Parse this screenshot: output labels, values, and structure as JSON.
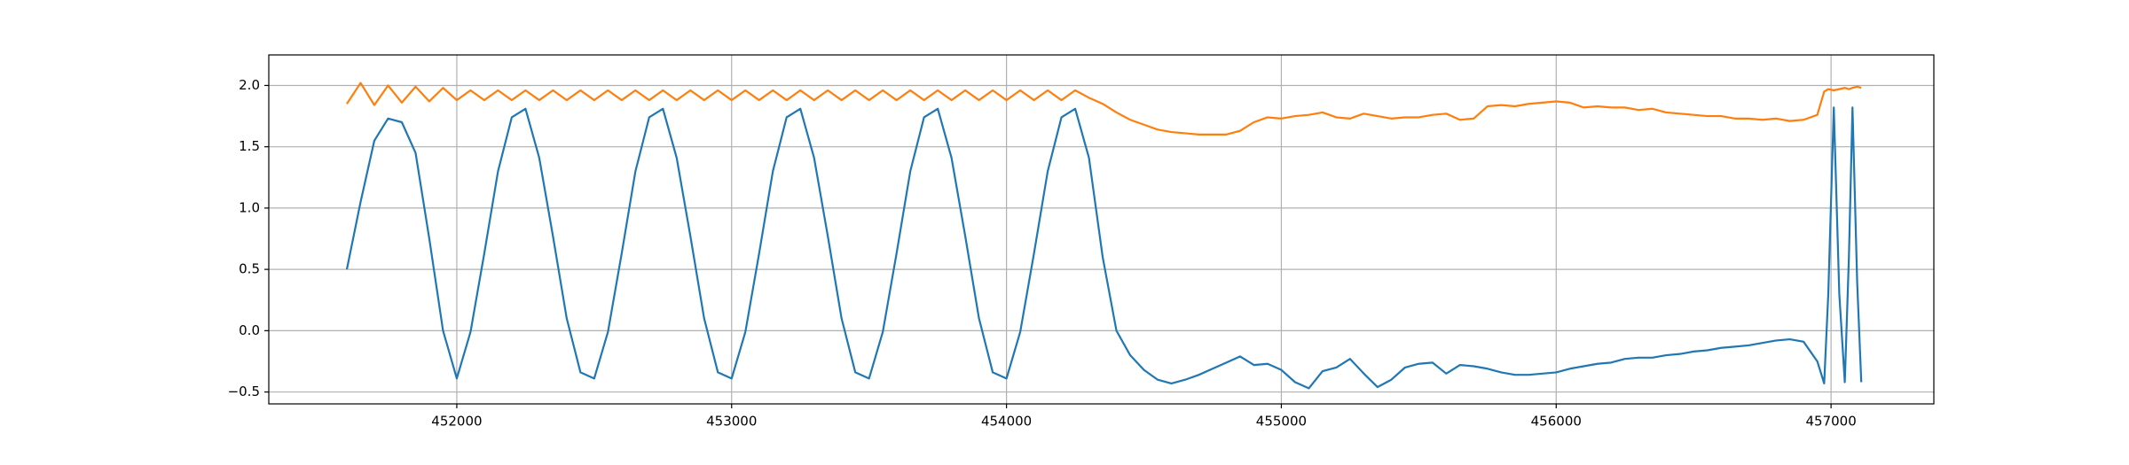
{
  "chart_data": {
    "type": "line",
    "x": [
      451600,
      451650,
      451700,
      451750,
      451800,
      451850,
      451900,
      451950,
      452000,
      452050,
      452100,
      452150,
      452200,
      452250,
      452300,
      452350,
      452400,
      452450,
      452500,
      452550,
      452600,
      452650,
      452700,
      452750,
      452800,
      452850,
      452900,
      452950,
      453000,
      453050,
      453100,
      453150,
      453200,
      453250,
      453300,
      453350,
      453400,
      453450,
      453500,
      453550,
      453600,
      453650,
      453700,
      453750,
      453800,
      453850,
      453900,
      453950,
      454000,
      454050,
      454100,
      454150,
      454200,
      454250,
      454300,
      454350,
      454400,
      454450,
      454500,
      454550,
      454600,
      454650,
      454700,
      454750,
      454800,
      454850,
      454900,
      454950,
      455000,
      455050,
      455100,
      455150,
      455200,
      455250,
      455300,
      455350,
      455400,
      455450,
      455500,
      455550,
      455600,
      455650,
      455700,
      455750,
      455800,
      455850,
      455900,
      455950,
      456000,
      456050,
      456100,
      456150,
      456200,
      456250,
      456300,
      456350,
      456400,
      456450,
      456500,
      456550,
      456600,
      456650,
      456700,
      456750,
      456800,
      456850,
      456900,
      456950,
      456975,
      456990,
      457010,
      457030,
      457050,
      457065,
      457078,
      457095,
      457110
    ],
    "series": [
      {
        "color": "#1f77b4",
        "values": [
          0.5,
          1.05,
          1.55,
          1.73,
          1.7,
          1.45,
          0.75,
          0.0,
          -0.39,
          -0.01,
          0.63,
          1.3,
          1.74,
          1.81,
          1.41,
          0.77,
          0.1,
          -0.34,
          -0.39,
          -0.01,
          0.63,
          1.3,
          1.74,
          1.81,
          1.41,
          0.77,
          0.1,
          -0.34,
          -0.39,
          -0.01,
          0.63,
          1.3,
          1.74,
          1.81,
          1.41,
          0.77,
          0.1,
          -0.34,
          -0.39,
          -0.01,
          0.63,
          1.3,
          1.74,
          1.81,
          1.41,
          0.77,
          0.1,
          -0.34,
          -0.39,
          -0.01,
          0.63,
          1.3,
          1.74,
          1.81,
          1.41,
          0.6,
          0.0,
          -0.2,
          -0.32,
          -0.4,
          -0.43,
          -0.4,
          -0.36,
          -0.31,
          -0.26,
          -0.21,
          -0.28,
          -0.27,
          -0.32,
          -0.42,
          -0.47,
          -0.33,
          -0.3,
          -0.23,
          -0.35,
          -0.46,
          -0.4,
          -0.3,
          -0.27,
          -0.26,
          -0.35,
          -0.28,
          -0.29,
          -0.31,
          -0.34,
          -0.36,
          -0.36,
          -0.35,
          -0.34,
          -0.31,
          -0.29,
          -0.27,
          -0.26,
          -0.23,
          -0.22,
          -0.22,
          -0.2,
          -0.19,
          -0.17,
          -0.16,
          -0.14,
          -0.13,
          -0.12,
          -0.1,
          -0.08,
          -0.07,
          -0.09,
          -0.25,
          -0.43,
          0.3,
          1.82,
          0.3,
          -0.42,
          0.6,
          1.82,
          0.4,
          -0.42
        ]
      },
      {
        "color": "#ff7f0e",
        "values": [
          1.85,
          2.02,
          1.84,
          2.0,
          1.86,
          1.99,
          1.87,
          1.98,
          1.88,
          1.96,
          1.88,
          1.96,
          1.88,
          1.96,
          1.88,
          1.96,
          1.88,
          1.96,
          1.88,
          1.96,
          1.88,
          1.96,
          1.88,
          1.96,
          1.88,
          1.96,
          1.88,
          1.96,
          1.88,
          1.96,
          1.88,
          1.96,
          1.88,
          1.96,
          1.88,
          1.96,
          1.88,
          1.96,
          1.88,
          1.96,
          1.88,
          1.96,
          1.88,
          1.96,
          1.88,
          1.96,
          1.88,
          1.96,
          1.88,
          1.96,
          1.88,
          1.96,
          1.88,
          1.96,
          1.9,
          1.85,
          1.78,
          1.72,
          1.68,
          1.64,
          1.62,
          1.61,
          1.6,
          1.6,
          1.6,
          1.63,
          1.7,
          1.74,
          1.73,
          1.75,
          1.76,
          1.78,
          1.74,
          1.73,
          1.77,
          1.75,
          1.73,
          1.74,
          1.74,
          1.76,
          1.77,
          1.72,
          1.73,
          1.83,
          1.84,
          1.83,
          1.85,
          1.86,
          1.87,
          1.86,
          1.82,
          1.83,
          1.82,
          1.82,
          1.8,
          1.81,
          1.78,
          1.77,
          1.76,
          1.75,
          1.75,
          1.73,
          1.73,
          1.72,
          1.73,
          1.71,
          1.72,
          1.76,
          1.95,
          1.97,
          1.96,
          1.97,
          1.98,
          1.97,
          1.98,
          1.99,
          1.98
        ]
      }
    ],
    "xlim": [
      451316,
      457374
    ],
    "ylim": [
      -0.597,
      2.249
    ],
    "xticks": [
      452000,
      453000,
      454000,
      455000,
      456000,
      457000
    ],
    "yticks": [
      {
        "value": -0.5,
        "label": "−0.5"
      },
      {
        "value": 0,
        "label": "0.0"
      },
      0.5,
      {
        "value": 1,
        "label": "1.0"
      },
      1.5,
      {
        "value": 2,
        "label": "2.0"
      }
    ],
    "grid": true
  }
}
